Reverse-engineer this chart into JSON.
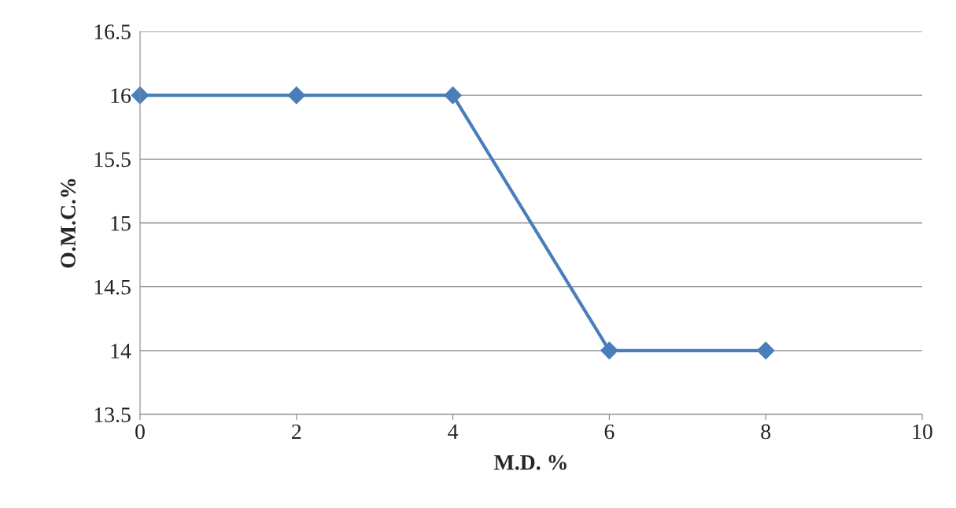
{
  "chart_data": {
    "type": "line",
    "xlabel": "M.D. %",
    "ylabel": "O.M.C.%",
    "x": [
      0,
      2,
      4,
      6,
      8
    ],
    "series": [
      {
        "color": "#4a7ebb",
        "values": [
          16,
          16,
          16,
          14,
          14
        ]
      }
    ],
    "xlim": [
      0,
      10
    ],
    "xticks": [
      0,
      2,
      4,
      6,
      8,
      10
    ],
    "ylim": [
      13.5,
      16.5
    ],
    "yticks": [
      13.5,
      14,
      14.5,
      15,
      15.5,
      16,
      16.5
    ],
    "grid": "y",
    "marker": "diamond",
    "line_style": "solid"
  }
}
